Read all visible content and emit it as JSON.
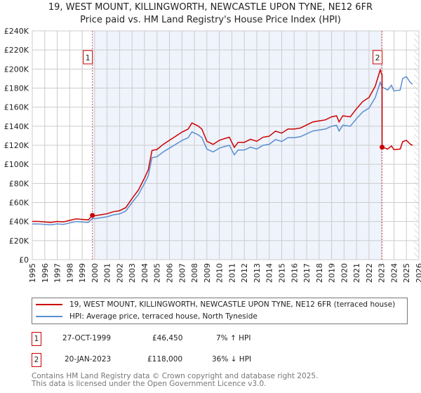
{
  "title": "19, WEST MOUNT, KILLINGWORTH, NEWCASTLE UPON TYNE, NE12 6FR",
  "subtitle": "Price paid vs. HM Land Registry's House Price Index (HPI)",
  "chart_data": {
    "type": "line",
    "xlim": [
      1995,
      2026
    ],
    "ylim": [
      0,
      240000
    ],
    "yticks": [
      0,
      20000,
      40000,
      60000,
      80000,
      100000,
      120000,
      140000,
      160000,
      180000,
      200000,
      220000,
      240000
    ],
    "ytick_labels": [
      "£0",
      "£20K",
      "£40K",
      "£60K",
      "£80K",
      "£100K",
      "£120K",
      "£140K",
      "£160K",
      "£180K",
      "£200K",
      "£220K",
      "£240K"
    ],
    "xtick_labels": [
      "1995",
      "1996",
      "1997",
      "1998",
      "1999",
      "2000",
      "2001",
      "2002",
      "2003",
      "2004",
      "2005",
      "2006",
      "2007",
      "2008",
      "2009",
      "2010",
      "2011",
      "2012",
      "2013",
      "2014",
      "2015",
      "2016",
      "2017",
      "2018",
      "2019",
      "2020",
      "2021",
      "2022",
      "2023",
      "2024",
      "2025",
      "2026"
    ],
    "grid": true,
    "colors": {
      "property": "#cc0000",
      "hpi": "#5b8fd0",
      "shade": "#eef3fc"
    },
    "series": [
      {
        "name": "hpi",
        "x": [
          1995,
          1995.5,
          1996,
          1996.5,
          1997,
          1997.5,
          1998,
          1998.5,
          1999,
          1999.5,
          1999.82,
          2000,
          2000.5,
          2001,
          2001.5,
          2002,
          2002.5,
          2003,
          2003.5,
          2004,
          2004.3,
          2004.6,
          2005,
          2005.5,
          2006,
          2006.5,
          2007,
          2007.5,
          2007.8,
          2008.3,
          2008.6,
          2009,
          2009.5,
          2010,
          2010.5,
          2010.8,
          2011,
          2011.2,
          2011.5,
          2012,
          2012.5,
          2013,
          2013.5,
          2014,
          2014.5,
          2015,
          2015.5,
          2016,
          2016.5,
          2017,
          2017.5,
          2018,
          2018.5,
          2019,
          2019.4,
          2019.6,
          2019.9,
          2020.5,
          2021,
          2021.5,
          2022,
          2022.5,
          2022.9,
          2023.05,
          2023.5,
          2023.8,
          2024,
          2024.5,
          2024.7,
          2025,
          2025.3,
          2025.5
        ],
        "y": [
          37500,
          37500,
          37000,
          36500,
          37500,
          37000,
          38500,
          40000,
          39500,
          39000,
          43400,
          43000,
          44000,
          45000,
          47000,
          48000,
          51000,
          60000,
          68000,
          80000,
          88000,
          107000,
          108000,
          113000,
          117000,
          121000,
          125000,
          128000,
          134000,
          131000,
          128000,
          116000,
          113000,
          117000,
          119000,
          120000,
          115000,
          110000,
          115000,
          115000,
          118000,
          116000,
          120000,
          121000,
          126000,
          124000,
          128000,
          128000,
          129000,
          132000,
          135000,
          136000,
          137000,
          140000,
          141000,
          135000,
          141000,
          140000,
          148000,
          155000,
          159000,
          170000,
          186000,
          181000,
          178000,
          183000,
          177000,
          178000,
          190000,
          192000,
          186000,
          184000
        ]
      },
      {
        "name": "property",
        "scale_until": 2023.05
      }
    ],
    "sales": [
      {
        "label": "1",
        "x": 1999.82,
        "price": 46450
      },
      {
        "label": "2",
        "x": 2023.05,
        "price": 118000
      }
    ]
  },
  "legend": {
    "property": "19, WEST MOUNT, KILLINGWORTH, NEWCASTLE UPON TYNE, NE12 6FR (terraced house)",
    "hpi": "HPI: Average price, terraced house, North Tyneside"
  },
  "table": [
    {
      "num": "1",
      "date": "27-OCT-1999",
      "price": "£46,450",
      "hpi": "7% ↑ HPI"
    },
    {
      "num": "2",
      "date": "20-JAN-2023",
      "price": "£118,000",
      "hpi": "36% ↓ HPI"
    }
  ],
  "footer": {
    "line1": "Contains HM Land Registry data © Crown copyright and database right 2025.",
    "line2": "This data is licensed under the Open Government Licence v3.0."
  }
}
